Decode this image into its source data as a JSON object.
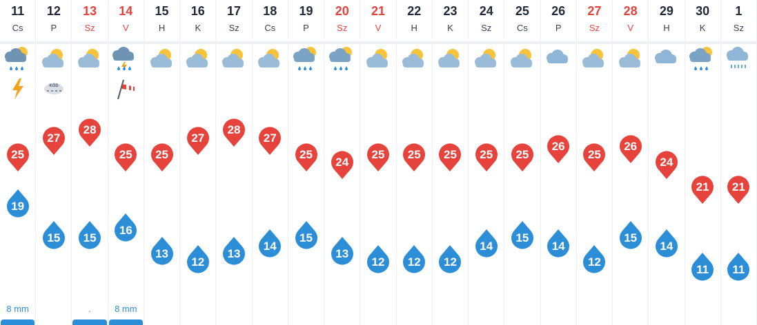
{
  "colors": {
    "max": "#e5433b",
    "min": "#2d8ed8",
    "weekend": "#e5433b",
    "text": "#1f2937"
  },
  "temp_range": {
    "max_top": 28,
    "max_bottom": 21,
    "min_top": 19,
    "min_bottom": 11
  },
  "days": [
    {
      "day": "11",
      "abbr": "Cs",
      "weekend": false,
      "icon": "storm-sun-rain-icon",
      "extra": "lightning-icon",
      "max": "25",
      "min": "19",
      "precip": "8 mm",
      "precip_bar": true
    },
    {
      "day": "12",
      "abbr": "P",
      "weekend": false,
      "icon": "sun-cloud-icon",
      "extra": "fog-icon",
      "extra_text": "KÖD",
      "max": "27",
      "min": "15",
      "precip": "",
      "precip_bar": false
    },
    {
      "day": "13",
      "abbr": "Sz",
      "weekend": true,
      "icon": "sun-cloud-icon",
      "extra": "",
      "max": "28",
      "min": "15",
      "precip": ".",
      "precip_bar": true
    },
    {
      "day": "14",
      "abbr": "V",
      "weekend": true,
      "icon": "storm-cloud-icon",
      "extra": "windsock-icon",
      "max": "25",
      "min": "16",
      "precip": "8 mm",
      "precip_bar": true
    },
    {
      "day": "15",
      "abbr": "H",
      "weekend": false,
      "icon": "sun-cloud-icon",
      "extra": "",
      "max": "25",
      "min": "13",
      "precip": "",
      "precip_bar": false
    },
    {
      "day": "16",
      "abbr": "K",
      "weekend": false,
      "icon": "sun-cloud-icon",
      "extra": "",
      "max": "27",
      "min": "12",
      "precip": "",
      "precip_bar": false
    },
    {
      "day": "17",
      "abbr": "Sz",
      "weekend": false,
      "icon": "sun-cloud-icon",
      "extra": "",
      "max": "28",
      "min": "13",
      "precip": "",
      "precip_bar": false
    },
    {
      "day": "18",
      "abbr": "Cs",
      "weekend": false,
      "icon": "sun-cloud-icon",
      "extra": "",
      "max": "27",
      "min": "14",
      "precip": "",
      "precip_bar": false
    },
    {
      "day": "19",
      "abbr": "P",
      "weekend": false,
      "icon": "sun-rain-icon",
      "extra": "",
      "max": "25",
      "min": "15",
      "precip": "",
      "precip_bar": false
    },
    {
      "day": "20",
      "abbr": "Sz",
      "weekend": true,
      "icon": "sun-rain-icon",
      "extra": "",
      "max": "24",
      "min": "13",
      "precip": "",
      "precip_bar": false
    },
    {
      "day": "21",
      "abbr": "V",
      "weekend": true,
      "icon": "sun-cloud-icon",
      "extra": "",
      "max": "25",
      "min": "12",
      "precip": "",
      "precip_bar": false
    },
    {
      "day": "22",
      "abbr": "H",
      "weekend": false,
      "icon": "sun-cloud-icon",
      "extra": "",
      "max": "25",
      "min": "12",
      "precip": "",
      "precip_bar": false
    },
    {
      "day": "23",
      "abbr": "K",
      "weekend": false,
      "icon": "sun-cloud-icon",
      "extra": "",
      "max": "25",
      "min": "12",
      "precip": "",
      "precip_bar": false
    },
    {
      "day": "24",
      "abbr": "Sz",
      "weekend": false,
      "icon": "sun-cloud-icon",
      "extra": "",
      "max": "25",
      "min": "14",
      "precip": "",
      "precip_bar": false
    },
    {
      "day": "25",
      "abbr": "Cs",
      "weekend": false,
      "icon": "sun-cloud-icon",
      "extra": "",
      "max": "25",
      "min": "15",
      "precip": "",
      "precip_bar": false
    },
    {
      "day": "26",
      "abbr": "P",
      "weekend": false,
      "icon": "cloud-icon",
      "extra": "",
      "max": "26",
      "min": "14",
      "precip": "",
      "precip_bar": false
    },
    {
      "day": "27",
      "abbr": "Sz",
      "weekend": true,
      "icon": "sun-cloud-icon",
      "extra": "",
      "max": "25",
      "min": "12",
      "precip": "",
      "precip_bar": false
    },
    {
      "day": "28",
      "abbr": "V",
      "weekend": true,
      "icon": "sun-cloud-icon",
      "extra": "",
      "max": "26",
      "min": "15",
      "precip": "",
      "precip_bar": false
    },
    {
      "day": "29",
      "abbr": "H",
      "weekend": false,
      "icon": "cloud-icon",
      "extra": "",
      "max": "24",
      "min": "14",
      "precip": "",
      "precip_bar": false
    },
    {
      "day": "30",
      "abbr": "K",
      "weekend": false,
      "icon": "sun-rain-icon",
      "extra": "",
      "max": "21",
      "min": "11",
      "precip": "",
      "precip_bar": false
    },
    {
      "day": "1",
      "abbr": "Sz",
      "weekend": false,
      "icon": "drizzle-cloud-icon",
      "extra": "",
      "max": "21",
      "min": "11",
      "precip": "",
      "precip_bar": false
    }
  ]
}
